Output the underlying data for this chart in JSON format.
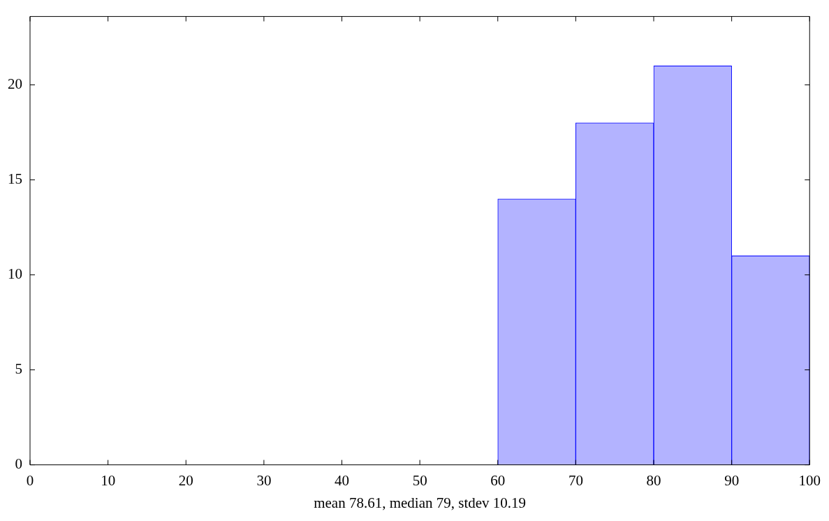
{
  "chart_data": {
    "type": "histogram",
    "bins": [
      0,
      10,
      20,
      30,
      40,
      50,
      60,
      70,
      80,
      90,
      100
    ],
    "values": [
      0,
      0,
      0,
      0,
      0,
      0,
      14,
      18,
      21,
      11
    ],
    "color": "#b3b3ff",
    "xlabel": "mean 78.61, median 79, stdev 10.19",
    "xlim": [
      0,
      100
    ],
    "xticks": [
      0,
      10,
      20,
      30,
      40,
      50,
      60,
      70,
      80,
      90,
      100
    ],
    "ylim": [
      0,
      23.6
    ],
    "yticks": [
      0,
      5,
      10,
      15,
      20
    ]
  }
}
